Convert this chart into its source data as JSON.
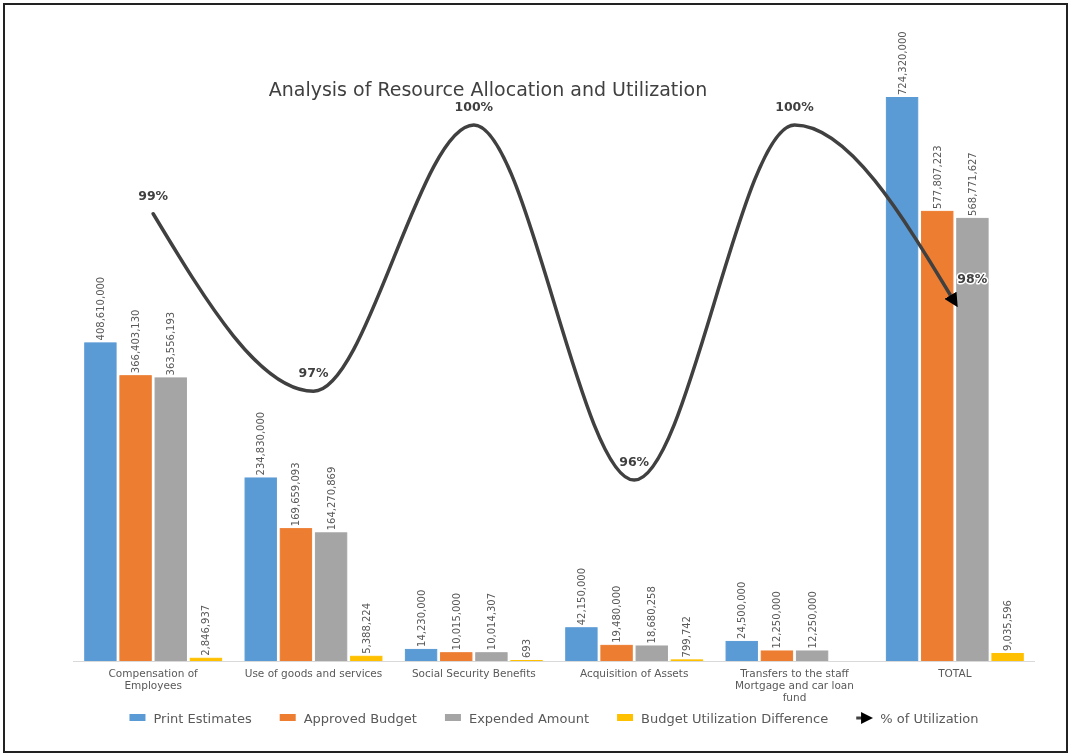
{
  "chart_data": {
    "type": "bar",
    "title": "Analysis of Resource Allocation and Utilization",
    "categories": [
      "Compensation of Employees",
      "Use of goods and services",
      "Social Security Benefits",
      "Acquisition of Assets",
      "Transfers to the staff Mortgage and car loan fund",
      "TOTAL"
    ],
    "series": [
      {
        "name": "Print Estimates",
        "color": "#5b9bd5",
        "values": [
          408610000,
          234830000,
          14230000,
          42150000,
          24500000,
          724320000
        ],
        "value_labels": [
          "408,610,000",
          "234,830,000",
          "14,230,000",
          "42,150,000",
          "24,500,000",
          "724,320,000"
        ]
      },
      {
        "name": "Approved Budget",
        "color": "#ed7d31",
        "values": [
          366403130,
          169659093,
          10015000,
          19480000,
          12250000,
          577807223
        ],
        "value_labels": [
          "366,403,130",
          "169,659,093",
          "10,015,000",
          "19,480,000",
          "12,250,000",
          "577,807,223"
        ]
      },
      {
        "name": "Expended Amount",
        "color": "#a5a5a5",
        "values": [
          363556193,
          164270869,
          10014307,
          18680258,
          12250000,
          568771627
        ],
        "value_labels": [
          "363,556,193",
          "164,270,869",
          "10,014,307",
          "18,680,258",
          "12,250,000",
          "568,771,627"
        ]
      },
      {
        "name": "Budget Utilization Difference",
        "color": "#ffc000",
        "values": [
          2846937,
          5388224,
          693,
          799742,
          null,
          9035596
        ],
        "value_labels": [
          "2,846,937",
          "5,388,224",
          "693",
          "799,742",
          null,
          "9,035,596"
        ]
      },
      {
        "name": "% of Utilization",
        "type": "line",
        "axis": "y2",
        "color": "#404040",
        "values": [
          99,
          97,
          100,
          96,
          100,
          98
        ],
        "value_labels": [
          "99%",
          "97%",
          "100%",
          "96%",
          "100%",
          "98%"
        ]
      }
    ],
    "legend": "bottom",
    "marker": "none",
    "line_style": "solid"
  }
}
